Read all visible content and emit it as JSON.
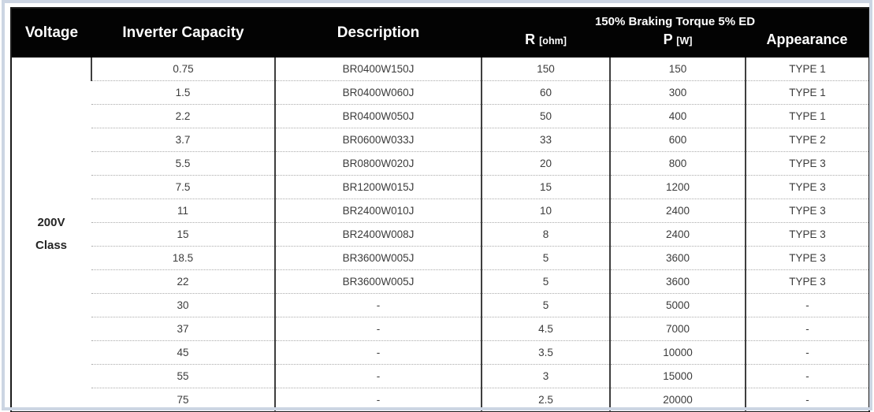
{
  "table": {
    "headers": {
      "voltage": "Voltage",
      "inverter_capacity": "Inverter Capacity",
      "description": "Description",
      "braking_group": "150% Braking Torque 5% ED",
      "r_main": "R",
      "r_unit": "[ohm]",
      "p_main": "P",
      "p_unit": "[W]",
      "appearance": "Appearance"
    },
    "voltage_cell": {
      "line1": "200V",
      "line2": "Class"
    },
    "rows": [
      {
        "capacity": "0.75",
        "description": "BR0400W150J",
        "r_ohm": "150",
        "p_w": "150",
        "appearance": "TYPE 1"
      },
      {
        "capacity": "1.5",
        "description": "BR0400W060J",
        "r_ohm": "60",
        "p_w": "300",
        "appearance": "TYPE 1"
      },
      {
        "capacity": "2.2",
        "description": "BR0400W050J",
        "r_ohm": "50",
        "p_w": "400",
        "appearance": "TYPE 1"
      },
      {
        "capacity": "3.7",
        "description": "BR0600W033J",
        "r_ohm": "33",
        "p_w": "600",
        "appearance": "TYPE 2"
      },
      {
        "capacity": "5.5",
        "description": "BR0800W020J",
        "r_ohm": "20",
        "p_w": "800",
        "appearance": "TYPE 3"
      },
      {
        "capacity": "7.5",
        "description": "BR1200W015J",
        "r_ohm": "15",
        "p_w": "1200",
        "appearance": "TYPE 3"
      },
      {
        "capacity": "11",
        "description": "BR2400W010J",
        "r_ohm": "10",
        "p_w": "2400",
        "appearance": "TYPE 3"
      },
      {
        "capacity": "15",
        "description": "BR2400W008J",
        "r_ohm": "8",
        "p_w": "2400",
        "appearance": "TYPE 3"
      },
      {
        "capacity": "18.5",
        "description": "BR3600W005J",
        "r_ohm": "5",
        "p_w": "3600",
        "appearance": "TYPE 3"
      },
      {
        "capacity": "22",
        "description": "BR3600W005J",
        "r_ohm": "5",
        "p_w": "3600",
        "appearance": "TYPE 3"
      },
      {
        "capacity": "30",
        "description": "-",
        "r_ohm": "5",
        "p_w": "5000",
        "appearance": "-"
      },
      {
        "capacity": "37",
        "description": "-",
        "r_ohm": "4.5",
        "p_w": "7000",
        "appearance": "-"
      },
      {
        "capacity": "45",
        "description": "-",
        "r_ohm": "3.5",
        "p_w": "10000",
        "appearance": "-"
      },
      {
        "capacity": "55",
        "description": "-",
        "r_ohm": "3",
        "p_w": "15000",
        "appearance": "-"
      },
      {
        "capacity": "75",
        "description": "-",
        "r_ohm": "2.5",
        "p_w": "20000",
        "appearance": "-"
      }
    ],
    "colors": {
      "header_bg": "#030303",
      "header_text": "#ffffff",
      "body_text": "#3c3c3c",
      "grid_line": "#3e3e3e",
      "row_dotted_line": "#ababab",
      "outer_frame": "#ccd5e3"
    }
  }
}
